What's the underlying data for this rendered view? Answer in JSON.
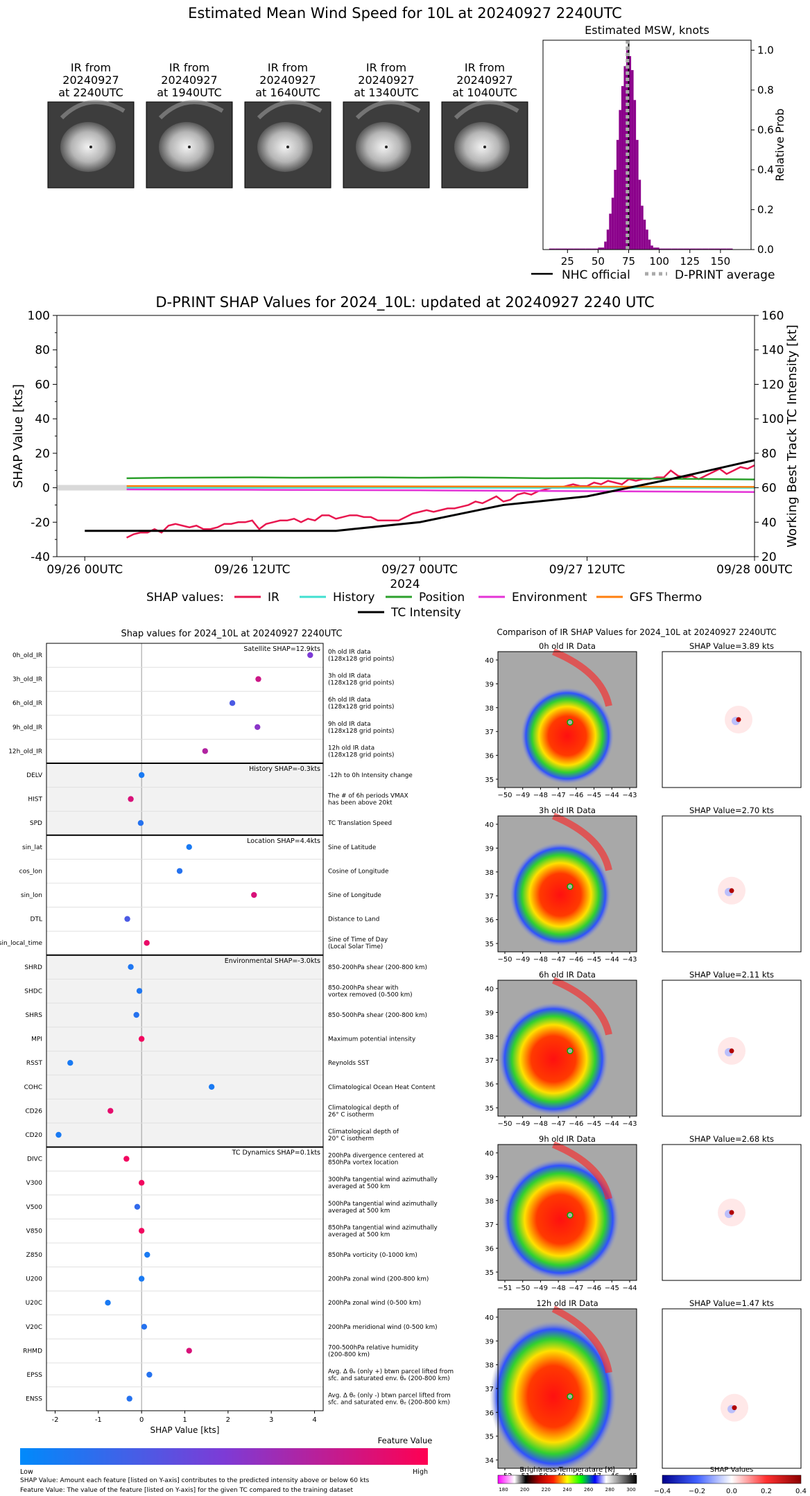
{
  "page_title": "Estimated Mean Wind Speed for 10L at 20240927 2240UTC",
  "thumbnails": [
    {
      "label": [
        "IR from",
        "20240927",
        "at 2240UTC"
      ]
    },
    {
      "label": [
        "IR from",
        "20240927",
        "at 1940UTC"
      ]
    },
    {
      "label": [
        "IR from",
        "20240927",
        "at 1640UTC"
      ]
    },
    {
      "label": [
        "IR from",
        "20240927",
        "at 1340UTC"
      ]
    },
    {
      "label": [
        "IR from",
        "20240927",
        "at 1040UTC"
      ]
    }
  ],
  "chart_data": [
    {
      "id": "msw_histogram",
      "type": "bar",
      "title": "Estimated MSW, knots",
      "ylabel": "Relative Prob",
      "xlim": [
        5,
        175
      ],
      "ylim": [
        0,
        1.05
      ],
      "xticks": [
        25,
        50,
        75,
        100,
        125,
        150
      ],
      "yticks": [
        0.0,
        0.2,
        0.4,
        0.6,
        0.8,
        1.0
      ],
      "bins_x": [
        10,
        15,
        20,
        25,
        30,
        35,
        40,
        45,
        50,
        55,
        57,
        59,
        61,
        63,
        65,
        67,
        69,
        71,
        73,
        75,
        77,
        79,
        81,
        83,
        85,
        87,
        89,
        91,
        93,
        95,
        100,
        105,
        110,
        115,
        120,
        125,
        130,
        135,
        140,
        145,
        150,
        155,
        160
      ],
      "bins_y": [
        0.005,
        0.005,
        0.005,
        0.005,
        0.005,
        0.005,
        0.005,
        0.005,
        0.01,
        0.04,
        0.1,
        0.18,
        0.26,
        0.4,
        0.55,
        0.7,
        0.82,
        0.92,
        1.0,
        0.97,
        0.9,
        0.75,
        0.55,
        0.35,
        0.22,
        0.15,
        0.1,
        0.05,
        0.02,
        0.01,
        0.005,
        0.005,
        0.005,
        0.005,
        0.005,
        0.005,
        0.005,
        0.005,
        0.005,
        0.005,
        0.005,
        0.005,
        0.005
      ],
      "nhc_official": 75,
      "dprint_average": 74,
      "legend": [
        {
          "name": "NHC official",
          "color": "#000000",
          "style": "solid"
        },
        {
          "name": "D-PRINT average",
          "color": "#aaaaaa",
          "style": "dotted"
        }
      ]
    },
    {
      "id": "shap_timeseries",
      "type": "line",
      "title": "D-PRINT SHAP Values for 2024_10L: updated at 20240927 2240 UTC",
      "xlabel": "2024",
      "ylabel": "SHAP Value [kts]",
      "y2label": "Working Best Track TC Intensity [kt]",
      "xlim_hours": [
        -2,
        48
      ],
      "ylim": [
        -40,
        100
      ],
      "y2lim": [
        20,
        160
      ],
      "xticks": [
        {
          "h": 0,
          "label": "09/26 00UTC"
        },
        {
          "h": 12,
          "label": "09/26 12UTC"
        },
        {
          "h": 24,
          "label": "09/27 00UTC"
        },
        {
          "h": 36,
          "label": "09/27 12UTC"
        },
        {
          "h": 48,
          "label": "09/28 00UTC"
        }
      ],
      "yticks": [
        -40,
        -20,
        0,
        20,
        40,
        60,
        80,
        100
      ],
      "y2ticks": [
        20,
        40,
        60,
        80,
        100,
        120,
        140,
        160
      ],
      "series": [
        {
          "name": "IR",
          "color": "#e8174f",
          "hours": [
            3,
            3.5,
            4,
            4.5,
            5,
            5.5,
            6,
            6.5,
            7,
            7.5,
            8,
            8.5,
            9,
            9.5,
            10,
            10.5,
            11,
            11.5,
            12,
            12.5,
            13,
            13.5,
            14,
            14.5,
            15,
            15.5,
            16,
            16.5,
            17,
            17.5,
            18,
            18.5,
            19,
            19.5,
            20,
            20.5,
            21,
            21.5,
            22,
            22.5,
            23,
            23.5,
            24,
            24.5,
            25,
            25.5,
            26,
            26.5,
            27,
            27.5,
            28,
            28.5,
            29,
            29.5,
            30,
            30.5,
            31,
            31.5,
            32,
            32.5,
            33,
            33.5,
            34,
            34.5,
            35,
            35.5,
            36,
            36.5,
            37,
            37.5,
            38,
            38.5,
            39,
            39.5,
            40,
            40.5,
            41,
            41.5,
            42,
            42.5,
            43,
            43.5,
            44,
            44.5,
            45,
            45.5,
            46,
            46.5,
            47,
            47.5,
            48
          ],
          "values": [
            -29,
            -27,
            -26,
            -26,
            -24,
            -26,
            -22,
            -21,
            -22,
            -23,
            -22,
            -24,
            -24,
            -23,
            -21,
            -21,
            -20,
            -20,
            -19,
            -24,
            -21,
            -20,
            -19,
            -19,
            -18,
            -20,
            -18,
            -19,
            -16,
            -16,
            -18,
            -17,
            -16,
            -16,
            -17,
            -17,
            -19,
            -19,
            -19,
            -19,
            -17,
            -15,
            -14,
            -13,
            -14,
            -13,
            -12,
            -12,
            -11,
            -10,
            -8,
            -9,
            -7,
            -5,
            -8,
            -7,
            -4,
            -3,
            -4,
            -2,
            -1,
            0,
            0,
            1,
            2,
            1,
            1,
            3,
            2,
            4,
            3,
            2,
            5,
            4,
            5,
            5,
            6,
            6,
            10,
            7,
            6,
            7,
            5,
            7,
            9,
            11,
            8,
            10,
            12,
            11,
            13
          ]
        },
        {
          "name": "History",
          "color": "#40e0d0",
          "hours": [
            3,
            48
          ],
          "values": [
            0,
            0
          ]
        },
        {
          "name": "Position",
          "color": "#2ca02c",
          "hours": [
            3,
            6,
            9,
            12,
            15,
            18,
            21,
            24,
            27,
            30,
            33,
            36,
            39,
            42,
            45,
            48
          ],
          "values": [
            5.5,
            5.8,
            5.9,
            6.0,
            5.8,
            5.9,
            6.0,
            5.8,
            6.0,
            5.8,
            5.5,
            5.6,
            5.4,
            5.2,
            5.0,
            4.8
          ]
        },
        {
          "name": "Environment",
          "color": "#e433d6",
          "hours": [
            3,
            12,
            24,
            36,
            48
          ],
          "values": [
            -1.0,
            -1.2,
            -1.5,
            -2.0,
            -2.5
          ]
        },
        {
          "name": "GFS Thermo",
          "color": "#ff7f0e",
          "hours": [
            3,
            48
          ],
          "values": [
            1.0,
            0.5
          ]
        },
        {
          "name": "TC Intensity",
          "color": "#000000",
          "axis": "right",
          "hours": [
            0,
            6,
            12,
            18,
            24,
            30,
            36,
            42,
            48
          ],
          "values": [
            35,
            35,
            35,
            35,
            40,
            50,
            55,
            65,
            76
          ]
        }
      ],
      "legend_label": "SHAP values:"
    },
    {
      "id": "feature_shap",
      "type": "scatter",
      "title": "Shap values for 2024_10L at 20240927 2240UTC",
      "xlabel": "SHAP Value [kts]",
      "xlim": [
        -2.2,
        4.2
      ],
      "xticks": [
        -2,
        -1,
        0,
        1,
        2,
        3,
        4
      ],
      "colorbar": {
        "title": "Feature Value",
        "low": "Low",
        "high": "High"
      },
      "groups": [
        {
          "label": "Satellite SHAP=12.9kts",
          "features": [
            {
              "name": "0h_old_IR",
              "desc": [
                "0h old IR data",
                "(128x128 grid points)"
              ],
              "shap": 3.9,
              "fv": 0.5
            },
            {
              "name": "3h_old_IR",
              "desc": [
                "3h old IR data",
                "(128x128 grid points)"
              ],
              "shap": 2.7,
              "fv": 0.8
            },
            {
              "name": "6h_old_IR",
              "desc": [
                "6h old IR data",
                "(128x128 grid points)"
              ],
              "shap": 2.1,
              "fv": 0.3
            },
            {
              "name": "9h_old_IR",
              "desc": [
                "9h old IR data",
                "(128x128 grid points)"
              ],
              "shap": 2.68,
              "fv": 0.55
            },
            {
              "name": "12h_old_IR",
              "desc": [
                "12h old IR data",
                "(128x128 grid points)"
              ],
              "shap": 1.47,
              "fv": 0.7
            }
          ]
        },
        {
          "label": "History SHAP=-0.3kts",
          "features": [
            {
              "name": "DELV",
              "desc": [
                "-12h to 0h Intensity change"
              ],
              "shap": 0.0,
              "fv": 0.1
            },
            {
              "name": "HIST",
              "desc": [
                "The # of 6h periods VMAX",
                "has been above 20kt"
              ],
              "shap": -0.25,
              "fv": 0.85
            },
            {
              "name": "SPD",
              "desc": [
                "TC Translation Speed"
              ],
              "shap": -0.02,
              "fv": 0.15
            }
          ]
        },
        {
          "label": "Location SHAP=4.4kts",
          "features": [
            {
              "name": "sin_lat",
              "desc": [
                "Sine of Latitude"
              ],
              "shap": 1.1,
              "fv": 0.1
            },
            {
              "name": "cos_lon",
              "desc": [
                "Cosine of Longitude"
              ],
              "shap": 0.88,
              "fv": 0.15
            },
            {
              "name": "sin_lon",
              "desc": [
                "Sine of Longitude"
              ],
              "shap": 2.6,
              "fv": 0.85
            },
            {
              "name": "DTL",
              "desc": [
                "Distance to Land"
              ],
              "shap": -0.33,
              "fv": 0.3
            },
            {
              "name": "sin_local_time",
              "desc": [
                "Sine of Time of Day",
                "(Local Solar Time)"
              ],
              "shap": 0.12,
              "fv": 0.92
            }
          ]
        },
        {
          "label": "Environmental SHAP=-3.0kts",
          "features": [
            {
              "name": "SHRD",
              "desc": [
                "850-200hPa shear (200-800 km)"
              ],
              "shap": -0.25,
              "fv": 0.12
            },
            {
              "name": "SHDC",
              "desc": [
                "850-200hPa shear with",
                "vortex removed (0-500 km)"
              ],
              "shap": -0.05,
              "fv": 0.12
            },
            {
              "name": "SHRS",
              "desc": [
                "850-500hPa shear (200-800 km)"
              ],
              "shap": -0.12,
              "fv": 0.15
            },
            {
              "name": "MPI",
              "desc": [
                "Maximum potential intensity"
              ],
              "shap": 0.0,
              "fv": 0.95
            },
            {
              "name": "RSST",
              "desc": [
                "Reynolds SST"
              ],
              "shap": -1.65,
              "fv": 0.1
            },
            {
              "name": "COHC",
              "desc": [
                "Climatological Ocean Heat Content"
              ],
              "shap": 1.62,
              "fv": 0.1
            },
            {
              "name": "CD26",
              "desc": [
                "Climatological depth of",
                "26° C isotherm"
              ],
              "shap": -0.72,
              "fv": 0.9
            },
            {
              "name": "CD20",
              "desc": [
                "Climatological depth of",
                "20° C isotherm"
              ],
              "shap": -1.92,
              "fv": 0.1
            }
          ]
        },
        {
          "label": "TC Dynamics SHAP=0.1kts",
          "features": [
            {
              "name": "DIVC",
              "desc": [
                "200hPa divergence centered at",
                "850hPa vortex location"
              ],
              "shap": -0.35,
              "fv": 0.95
            },
            {
              "name": "V300",
              "desc": [
                "300hPa tangential wind azimuthally",
                "averaged at 500 km"
              ],
              "shap": 0.0,
              "fv": 0.95
            },
            {
              "name": "V500",
              "desc": [
                "500hPa tangential wind azimuthally",
                "averaged at 500 km"
              ],
              "shap": -0.1,
              "fv": 0.2
            },
            {
              "name": "V850",
              "desc": [
                "850hPa tangential wind azimuthally",
                "averaged at 500 km"
              ],
              "shap": 0.0,
              "fv": 0.95
            },
            {
              "name": "Z850",
              "desc": [
                "850hPa vorticity (0-1000 km)"
              ],
              "shap": 0.13,
              "fv": 0.1
            },
            {
              "name": "U200",
              "desc": [
                "200hPa zonal wind (200-800 km)"
              ],
              "shap": 0.0,
              "fv": 0.1
            },
            {
              "name": "U20C",
              "desc": [
                "200hPa zonal wind (0-500 km)"
              ],
              "shap": -0.78,
              "fv": 0.1
            },
            {
              "name": "V20C",
              "desc": [
                "200hPa meridional wind (0-500 km)"
              ],
              "shap": 0.06,
              "fv": 0.15
            },
            {
              "name": "RHMD",
              "desc": [
                "700-500hPa relative humidity",
                "(200-800 km)"
              ],
              "shap": 1.1,
              "fv": 0.85
            },
            {
              "name": "EPSS",
              "desc": [
                "Avg. Δ θₑ (only +) btwn parcel lifted from",
                "sfc. and saturated env. θₑ (200-800 km)"
              ],
              "shap": 0.18,
              "fv": 0.15
            },
            {
              "name": "ENSS",
              "desc": [
                "Avg. Δ θₑ (only -) btwn parcel lifted from",
                "sfc. and saturated env. θₑ (200-800 km)"
              ],
              "shap": -0.28,
              "fv": 0.15
            }
          ]
        }
      ]
    },
    {
      "id": "ir_shap_maps",
      "type": "heatmap",
      "title": "Comparison of IR SHAP Values for 2024_10L at 20240927 2240UTC",
      "rows": [
        {
          "ir_title": "0h old IR Data",
          "shap_title": "SHAP Value=3.89 kts",
          "xticks": [
            "−50",
            "−49",
            "−48",
            "−47",
            "−46",
            "−45",
            "−44",
            "−43"
          ],
          "yticks": [
            "40",
            "39",
            "38",
            "37",
            "36",
            "35"
          ]
        },
        {
          "ir_title": "3h old IR Data",
          "shap_title": "SHAP Value=2.70 kts",
          "xticks": [
            "−50",
            "−49",
            "−48",
            "−47",
            "−46",
            "−45",
            "−44",
            "−43"
          ],
          "yticks": [
            "40",
            "39",
            "38",
            "37",
            "36",
            "35"
          ]
        },
        {
          "ir_title": "6h old IR Data",
          "shap_title": "SHAP Value=2.11 kts",
          "xticks": [
            "−50",
            "−49",
            "−48",
            "−47",
            "−46",
            "−45",
            "−44",
            "−43"
          ],
          "yticks": [
            "40",
            "39",
            "38",
            "37",
            "36",
            "35"
          ]
        },
        {
          "ir_title": "9h old IR Data",
          "shap_title": "SHAP Value=2.68 kts",
          "xticks": [
            "−51",
            "−50",
            "−49",
            "−48",
            "−47",
            "−46",
            "−45",
            "−44"
          ],
          "yticks": [
            "40",
            "39",
            "38",
            "37",
            "36",
            "35"
          ]
        },
        {
          "ir_title": "12h old IR Data",
          "shap_title": "SHAP Value=1.47 kts",
          "xticks": [
            "−52",
            "−51",
            "−50",
            "−49",
            "−48",
            "−47",
            "−46",
            "−45"
          ],
          "yticks": [
            "40",
            "39",
            "38",
            "37",
            "36",
            "35",
            "34"
          ]
        }
      ],
      "ir_colorbar": {
        "title": "Brightness Temperature [K]",
        "ticks": [
          "180",
          "200",
          "220",
          "240",
          "260",
          "280",
          "300"
        ]
      },
      "shap_colorbar": {
        "title": "SHAP Values",
        "ticks": [
          "−0.4",
          "−0.2",
          "0.0",
          "0.2",
          "0.4"
        ]
      }
    }
  ],
  "footnotes": [
    "SHAP Value: Amount each feature [listed on Y-axis] contributes to the predicted intensity above or below 60 kts",
    "Feature Value: The value of the feature [listed on Y-axis] for the given TC compared to the training dataset"
  ]
}
